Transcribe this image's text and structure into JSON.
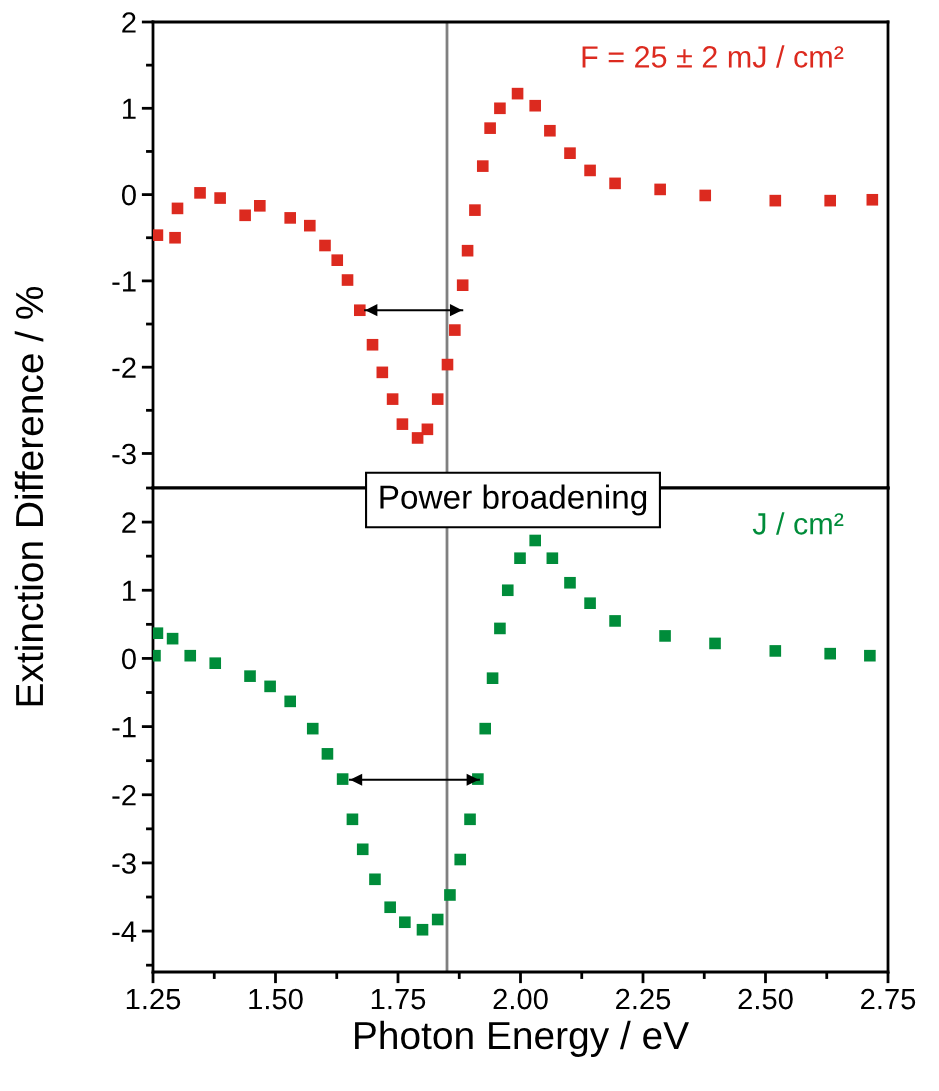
{
  "chart_data": [
    {
      "type": "scatter",
      "ylabel": "Extinction Difference / %",
      "xlim": [
        1.25,
        2.75
      ],
      "ylim": [
        -3.4,
        2
      ],
      "yticks": [
        -3,
        -2,
        -1,
        0,
        1,
        2
      ],
      "tick_labels": "y",
      "grid": false,
      "legend": false,
      "annotations": [
        "F = 25 ± 2 mJ / cm²",
        "Power broadening"
      ],
      "ref_lines": [
        {
          "axis": "x",
          "value": 1.85,
          "color": "#808080"
        }
      ],
      "series": [
        {
          "color": "#dc2a1f",
          "marker": "square",
          "x": [
            1.259,
            1.295,
            1.3,
            1.346,
            1.387,
            1.438,
            1.468,
            1.53,
            1.57,
            1.601,
            1.626,
            1.647,
            1.672,
            1.698,
            1.718,
            1.739,
            1.759,
            1.79,
            1.81,
            1.831,
            1.851,
            1.866,
            1.882,
            1.892,
            1.907,
            1.923,
            1.938,
            1.958,
            1.994,
            2.03,
            2.06,
            2.101,
            2.142,
            2.193,
            2.285,
            2.377,
            2.52,
            2.632,
            2.718
          ],
          "values": [
            -0.47,
            -0.5,
            -0.16,
            0.02,
            -0.04,
            -0.24,
            -0.13,
            -0.27,
            -0.36,
            -0.59,
            -0.76,
            -0.99,
            -1.34,
            -1.74,
            -2.06,
            -2.37,
            -2.66,
            -2.82,
            -2.72,
            -2.37,
            -1.97,
            -1.57,
            -1.05,
            -0.65,
            -0.18,
            0.33,
            0.77,
            1.0,
            1.17,
            1.03,
            0.74,
            0.48,
            0.28,
            0.13,
            0.06,
            -0.01,
            -0.07,
            -0.07,
            -0.06
          ]
        },
        {
          "type": "line",
          "marker": "none",
          "color": "#000000",
          "x": [
            1.683,
            1.881
          ],
          "values": [
            -1.34,
            -1.34
          ]
        }
      ]
    },
    {
      "type": "scatter",
      "xlabel": "Photon Energy / eV",
      "xlim": [
        1.25,
        2.75
      ],
      "xticks": [
        {
          "value": 1.25,
          "label": "1.25"
        },
        {
          "value": 1.5,
          "label": "1.50"
        },
        {
          "value": 1.75,
          "label": "1.75"
        },
        {
          "value": 2.0,
          "label": "2.00"
        },
        {
          "value": 2.25,
          "label": "2.25"
        },
        {
          "value": 2.5,
          "label": "2.50"
        },
        {
          "value": 2.75,
          "label": "2.75"
        }
      ],
      "ylim": [
        -4.6,
        2.5
      ],
      "yticks": [
        -4,
        -3,
        -2,
        -1,
        0,
        1,
        2
      ],
      "grid": false,
      "legend": false,
      "annotations": [
        "J / cm²"
      ],
      "ref_lines": [
        {
          "axis": "x",
          "value": 1.85,
          "color": "#808080"
        }
      ],
      "series": [
        {
          "color": "#008c3a",
          "marker": "square",
          "x": [
            1.254,
            1.259,
            1.29,
            1.326,
            1.377,
            1.448,
            1.489,
            1.53,
            1.576,
            1.606,
            1.637,
            1.657,
            1.678,
            1.703,
            1.734,
            1.764,
            1.8,
            1.831,
            1.856,
            1.877,
            1.897,
            1.913,
            1.928,
            1.943,
            1.958,
            1.974,
            1.999,
            2.03,
            2.065,
            2.101,
            2.142,
            2.193,
            2.295,
            2.397,
            2.52,
            2.632,
            2.713
          ],
          "values": [
            0.04,
            0.37,
            0.29,
            0.04,
            -0.07,
            -0.26,
            -0.41,
            -0.63,
            -1.03,
            -1.4,
            -1.77,
            -2.36,
            -2.8,
            -3.24,
            -3.65,
            -3.87,
            -3.98,
            -3.83,
            -3.47,
            -2.95,
            -2.36,
            -1.77,
            -1.03,
            -0.29,
            0.44,
            1.0,
            1.47,
            1.73,
            1.47,
            1.11,
            0.81,
            0.55,
            0.33,
            0.22,
            0.11,
            0.07,
            0.04
          ]
        },
        {
          "type": "line",
          "marker": "none",
          "color": "#000000",
          "x": [
            1.652,
            1.915
          ],
          "values": [
            -1.78,
            -1.78
          ]
        }
      ]
    }
  ]
}
